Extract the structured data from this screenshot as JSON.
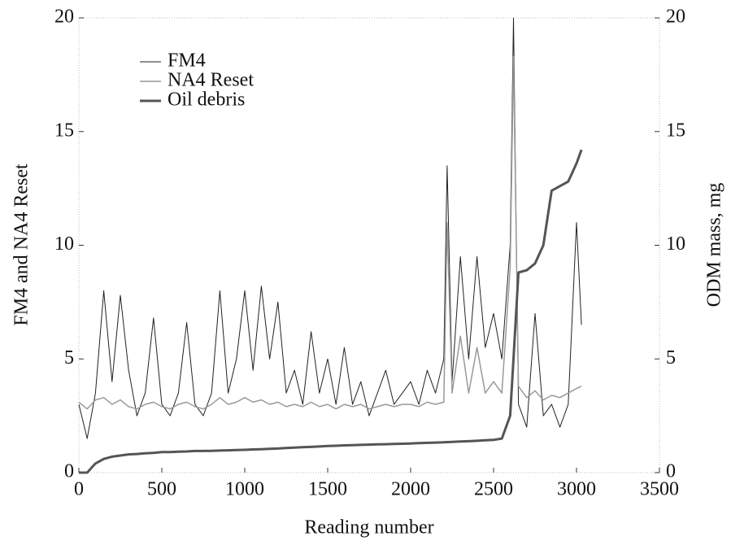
{
  "chart_data": {
    "type": "line",
    "xlabel": "Reading number",
    "ylabel": "FM4 and NA4 Reset",
    "y2label": "ODM mass, mg",
    "x": [
      0,
      50,
      100,
      150,
      200,
      250,
      300,
      350,
      400,
      450,
      500,
      550,
      600,
      650,
      700,
      750,
      800,
      850,
      900,
      950,
      1000,
      1050,
      1100,
      1150,
      1200,
      1250,
      1300,
      1350,
      1400,
      1450,
      1500,
      1550,
      1600,
      1650,
      1700,
      1750,
      1800,
      1850,
      1900,
      1950,
      2000,
      2050,
      2100,
      2150,
      2200,
      2220,
      2250,
      2300,
      2350,
      2400,
      2450,
      2500,
      2550,
      2600,
      2620,
      2650,
      2700,
      2750,
      2800,
      2850,
      2900,
      2950,
      3000,
      3030
    ],
    "series": [
      {
        "name": "FM4",
        "color": "#222222",
        "width": 1,
        "values": [
          3,
          1.5,
          3.5,
          8,
          4,
          7.8,
          4.5,
          2.5,
          3.5,
          6.8,
          3,
          2.5,
          3.5,
          6.6,
          3,
          2.5,
          3.5,
          8,
          3.5,
          5,
          8,
          4.5,
          8.2,
          5,
          7.5,
          3.5,
          4.5,
          3,
          6.2,
          3.5,
          5,
          3,
          5.5,
          3,
          4,
          2.5,
          3.5,
          4.5,
          3,
          3.5,
          4,
          3,
          4.5,
          3.5,
          5,
          13.5,
          4,
          9.5,
          5,
          9.5,
          5.5,
          7,
          5,
          10,
          20,
          3,
          2,
          7,
          2.5,
          3,
          2,
          3,
          11,
          6.5
        ]
      },
      {
        "name": "NA4 Reset",
        "color": "#999999",
        "width": 1.5,
        "values": [
          3.1,
          2.8,
          3.2,
          3.3,
          3.0,
          3.2,
          2.9,
          2.8,
          3.0,
          3.1,
          2.9,
          2.8,
          3.0,
          3.1,
          2.9,
          2.8,
          3.0,
          3.3,
          3.0,
          3.1,
          3.3,
          3.1,
          3.2,
          3.0,
          3.1,
          2.9,
          3.0,
          2.9,
          3.1,
          2.9,
          3.0,
          2.8,
          3.0,
          2.9,
          3.0,
          2.8,
          2.9,
          3.0,
          2.9,
          3.0,
          3.0,
          2.9,
          3.1,
          3.0,
          3.1,
          11,
          3.5,
          6,
          3.5,
          5.5,
          3.5,
          4,
          3.5,
          9,
          18.3,
          3.8,
          3.3,
          3.6,
          3.2,
          3.4,
          3.3,
          3.5,
          3.7,
          3.8
        ]
      },
      {
        "name": "Oil debris",
        "color": "#555555",
        "width": 3,
        "axis": "y2",
        "values": [
          0,
          0,
          0.4,
          0.6,
          0.7,
          0.75,
          0.8,
          0.82,
          0.85,
          0.87,
          0.9,
          0.9,
          0.92,
          0.93,
          0.95,
          0.95,
          0.96,
          0.97,
          0.98,
          0.99,
          1.0,
          1.02,
          1.03,
          1.05,
          1.06,
          1.08,
          1.1,
          1.12,
          1.13,
          1.15,
          1.17,
          1.18,
          1.2,
          1.21,
          1.22,
          1.23,
          1.24,
          1.25,
          1.26,
          1.27,
          1.28,
          1.3,
          1.31,
          1.32,
          1.33,
          1.34,
          1.35,
          1.37,
          1.38,
          1.4,
          1.42,
          1.44,
          1.5,
          2.5,
          5,
          8.8,
          8.9,
          9.2,
          10,
          12.4,
          12.6,
          12.8,
          13.6,
          14.2
        ]
      }
    ],
    "xlim": [
      0,
      3500
    ],
    "xticks": [
      0,
      500,
      1000,
      1500,
      2000,
      2500,
      3000,
      3500
    ],
    "ylim": [
      0,
      20
    ],
    "yticks": [
      0,
      5,
      10,
      15,
      20
    ],
    "y2lim": [
      0,
      20
    ],
    "y2ticks": [
      0,
      5,
      10,
      15,
      20
    ],
    "legend": "upper left",
    "grid": false
  }
}
